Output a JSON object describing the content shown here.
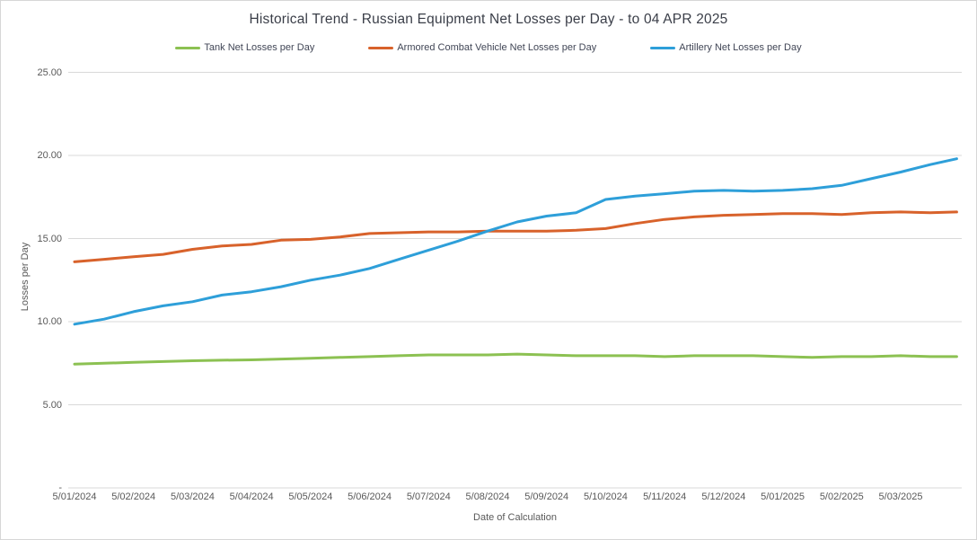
{
  "chart_data": {
    "type": "line",
    "title": "Historical Trend - Russian Equipment Net Losses per Day - to 04 APR 2025",
    "xlabel": "Date of Calculation",
    "ylabel": "Losses per Day",
    "ylim": [
      0,
      25
    ],
    "grid": "horizontal",
    "legend_position": "top",
    "gridline_color": "#d9d9d9",
    "ytick_values": [
      0,
      5,
      10,
      15,
      20,
      25
    ],
    "ytick_labels": [
      "-",
      "5.00",
      "10.00",
      "15.00",
      "20.00",
      "25.00"
    ],
    "x_labels": [
      "5/01/2024",
      "5/02/2024",
      "5/03/2024",
      "5/04/2024",
      "5/05/2024",
      "5/06/2024",
      "5/07/2024",
      "5/08/2024",
      "5/09/2024",
      "5/10/2024",
      "5/11/2024",
      "5/12/2024",
      "5/01/2025",
      "5/02/2025",
      "5/03/2025"
    ],
    "x_unit": "months since 5/01/2024 tick; data extends to 04 APR 2025",
    "series": [
      {
        "name": "Tank Net Losses per Day",
        "color": "#8cc152",
        "points": [
          [
            0,
            7.45
          ],
          [
            0.5,
            7.5
          ],
          [
            1,
            7.55
          ],
          [
            1.5,
            7.6
          ],
          [
            2,
            7.65
          ],
          [
            2.5,
            7.68
          ],
          [
            3,
            7.7
          ],
          [
            3.5,
            7.75
          ],
          [
            4,
            7.8
          ],
          [
            4.5,
            7.85
          ],
          [
            5,
            7.9
          ],
          [
            5.5,
            7.95
          ],
          [
            6,
            8.0
          ],
          [
            6.5,
            8.0
          ],
          [
            7,
            8.0
          ],
          [
            7.5,
            8.05
          ],
          [
            8,
            8.0
          ],
          [
            8.5,
            7.95
          ],
          [
            9,
            7.95
          ],
          [
            9.5,
            7.95
          ],
          [
            10,
            7.9
          ],
          [
            10.5,
            7.95
          ],
          [
            11,
            7.95
          ],
          [
            11.5,
            7.95
          ],
          [
            12,
            7.9
          ],
          [
            12.5,
            7.85
          ],
          [
            13,
            7.9
          ],
          [
            13.5,
            7.9
          ],
          [
            14,
            7.95
          ],
          [
            14.5,
            7.9
          ],
          [
            14.95,
            7.9
          ]
        ]
      },
      {
        "name": "Armored Combat Vehicle Net Losses per Day",
        "color": "#d8622b",
        "points": [
          [
            0,
            13.6
          ],
          [
            0.5,
            13.75
          ],
          [
            1,
            13.9
          ],
          [
            1.5,
            14.05
          ],
          [
            2,
            14.35
          ],
          [
            2.5,
            14.55
          ],
          [
            3,
            14.65
          ],
          [
            3.5,
            14.9
          ],
          [
            4,
            14.95
          ],
          [
            4.5,
            15.1
          ],
          [
            5,
            15.3
          ],
          [
            5.5,
            15.35
          ],
          [
            6,
            15.4
          ],
          [
            6.5,
            15.4
          ],
          [
            7,
            15.45
          ],
          [
            7.5,
            15.45
          ],
          [
            8,
            15.45
          ],
          [
            8.5,
            15.5
          ],
          [
            9,
            15.6
          ],
          [
            9.5,
            15.9
          ],
          [
            10,
            16.15
          ],
          [
            10.5,
            16.3
          ],
          [
            11,
            16.4
          ],
          [
            11.5,
            16.45
          ],
          [
            12,
            16.5
          ],
          [
            12.5,
            16.5
          ],
          [
            13,
            16.45
          ],
          [
            13.5,
            16.55
          ],
          [
            14,
            16.6
          ],
          [
            14.5,
            16.55
          ],
          [
            14.95,
            16.6
          ]
        ]
      },
      {
        "name": "Artillery Net Losses per Day",
        "color": "#2e9fd9",
        "points": [
          [
            0,
            9.85
          ],
          [
            0.5,
            10.15
          ],
          [
            1,
            10.6
          ],
          [
            1.5,
            10.95
          ],
          [
            2,
            11.2
          ],
          [
            2.5,
            11.6
          ],
          [
            3,
            11.8
          ],
          [
            3.5,
            12.1
          ],
          [
            4,
            12.5
          ],
          [
            4.5,
            12.8
          ],
          [
            5,
            13.2
          ],
          [
            5.5,
            13.75
          ],
          [
            6,
            14.3
          ],
          [
            6.5,
            14.85
          ],
          [
            7,
            15.45
          ],
          [
            7.5,
            16.0
          ],
          [
            8,
            16.35
          ],
          [
            8.5,
            16.55
          ],
          [
            9,
            17.35
          ],
          [
            9.5,
            17.55
          ],
          [
            10,
            17.7
          ],
          [
            10.5,
            17.85
          ],
          [
            11,
            17.9
          ],
          [
            11.5,
            17.85
          ],
          [
            12,
            17.9
          ],
          [
            12.5,
            18.0
          ],
          [
            13,
            18.2
          ],
          [
            13.5,
            18.6
          ],
          [
            14,
            19.0
          ],
          [
            14.5,
            19.45
          ],
          [
            14.95,
            19.8
          ]
        ]
      }
    ]
  }
}
